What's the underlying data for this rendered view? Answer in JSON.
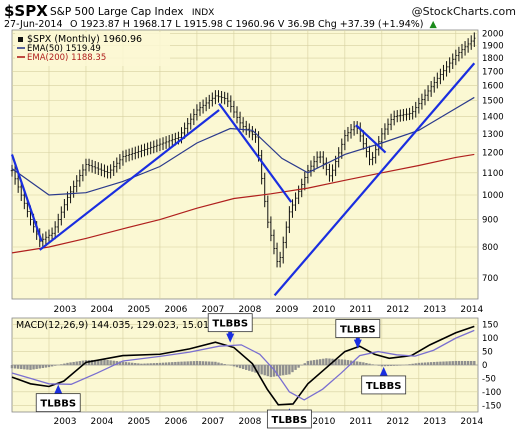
{
  "header": {
    "symbol": "$SPX",
    "name": "S&P 500 Large Cap Index",
    "exchange": "INDX",
    "watermark": "@StockCharts.com",
    "date": "27-Jun-2014",
    "ohlc": "O 1923.87  H 1968.17  L 1915.98  C 1960.96  V 36.9B  Chg +37.39 (+1.94%)",
    "arrow": "▲"
  },
  "legend": {
    "price": "$SPX (Monthly) 1960.96",
    "ema50": "EMA(50) 1519.49",
    "ema200": "EMA(200) 1188.35"
  },
  "colors": {
    "panel_bg": "#fbf8d3",
    "grid": "#d6d0a0",
    "price": "#111111",
    "ema50": "#2b3a8c",
    "ema200": "#b0201e",
    "trendline": "#1a2ee0",
    "macd": "#000000",
    "signal": "#7a6fd0",
    "histogram": "#8f8f8f",
    "callout_bg": "#ffffff"
  },
  "macd_label": "MACD(12,26,9) 144.035, 129.023, 15.012",
  "annotations": [
    {
      "text": "TLBBS",
      "anchor_date": 2003.25,
      "anchor_value": -62,
      "pointer": "up"
    },
    {
      "text": "TLBBS",
      "anchor_date": 2007.9,
      "anchor_value": 72,
      "pointer": "down"
    },
    {
      "text": "TLBBS",
      "anchor_date": 2009.5,
      "anchor_value": -150,
      "pointer": "up"
    },
    {
      "text": "TLBBS",
      "anchor_date": 2011.35,
      "anchor_value": 50,
      "pointer": "down"
    },
    {
      "text": "TLBBS",
      "anchor_date": 2012.05,
      "anchor_value": 4,
      "pointer": "up"
    }
  ],
  "chart_data": [
    {
      "type": "line",
      "title": "$SPX S&P 500 Large Cap Index INDX",
      "scale": "log",
      "xlim": [
        2002.0,
        2014.6
      ],
      "ylim": [
        640,
        2030
      ],
      "x_ticks": [
        "2003",
        "2004",
        "2005",
        "2006",
        "2007",
        "2008",
        "2009",
        "2010",
        "2011",
        "2012",
        "2013",
        "2014"
      ],
      "y_ticks": [
        700,
        800,
        900,
        1000,
        1100,
        1200,
        1300,
        1400,
        1500,
        1600,
        1700,
        1800,
        1900,
        2000
      ],
      "grid": true,
      "legend": "top-left",
      "series": [
        {
          "name": "$SPX (Monthly) 1960.96",
          "style": "bars",
          "x": [
            2002.0,
            2002.5,
            2002.75,
            2003.1,
            2003.5,
            2004.0,
            2004.6,
            2005.0,
            2005.8,
            2006.5,
            2007.0,
            2007.5,
            2007.8,
            2008.2,
            2008.6,
            2008.9,
            2009.2,
            2009.5,
            2010.0,
            2010.3,
            2010.6,
            2011.0,
            2011.3,
            2011.7,
            2012.0,
            2012.3,
            2012.8,
            2013.0,
            2013.5,
            2014.0,
            2014.5
          ],
          "values": [
            1110,
            900,
            820,
            850,
            990,
            1140,
            1100,
            1180,
            1230,
            1280,
            1440,
            1530,
            1510,
            1350,
            1280,
            900,
            735,
            930,
            1110,
            1190,
            1080,
            1290,
            1350,
            1150,
            1300,
            1400,
            1420,
            1480,
            1650,
            1820,
            1960
          ]
        },
        {
          "name": "EMA(50) 1519.49",
          "x": [
            2002.0,
            2003.0,
            2004.0,
            2005.0,
            2006.0,
            2007.0,
            2007.9,
            2008.5,
            2009.3,
            2010.0,
            2011.0,
            2012.0,
            2013.0,
            2014.0,
            2014.5
          ],
          "values": [
            1120,
            1000,
            1010,
            1060,
            1130,
            1250,
            1330,
            1320,
            1170,
            1100,
            1190,
            1250,
            1320,
            1450,
            1520
          ]
        },
        {
          "name": "EMA(200) 1188.35",
          "x": [
            2002.0,
            2003.0,
            2004.0,
            2005.0,
            2006.0,
            2007.0,
            2008.0,
            2009.0,
            2010.0,
            2011.0,
            2012.0,
            2013.0,
            2014.0,
            2014.5
          ],
          "values": [
            780,
            800,
            830,
            865,
            900,
            945,
            985,
            1005,
            1030,
            1065,
            1100,
            1135,
            1175,
            1190
          ]
        },
        {
          "name": "",
          "style": "trendline",
          "x": [
            2002.0,
            2002.8
          ],
          "values": [
            1190,
            820
          ]
        },
        {
          "name": "",
          "style": "trendline",
          "x": [
            2002.75,
            2007.6
          ],
          "values": [
            790,
            1440
          ]
        },
        {
          "name": "",
          "style": "trendline",
          "x": [
            2007.6,
            2009.55
          ],
          "values": [
            1480,
            970
          ]
        },
        {
          "name": "",
          "style": "trendline",
          "x": [
            2009.1,
            2014.5
          ],
          "values": [
            650,
            1760
          ]
        },
        {
          "name": "",
          "style": "trendline",
          "x": [
            2011.3,
            2012.1
          ],
          "values": [
            1350,
            1200
          ]
        }
      ]
    },
    {
      "type": "line",
      "title": "MACD(12,26,9) 144.035, 129.023, 15.012",
      "xlim": [
        2002.0,
        2014.6
      ],
      "ylim": [
        -175,
        175
      ],
      "x_ticks": [
        "2003",
        "2004",
        "2005",
        "2006",
        "2007",
        "2008",
        "2009",
        "2010",
        "2011",
        "2012",
        "2013",
        "2014"
      ],
      "y_ticks": [
        -150,
        -100,
        -50,
        0,
        50,
        100,
        150
      ],
      "grid": true,
      "series": [
        {
          "name": "MACD",
          "x": [
            2002.0,
            2002.5,
            2003.0,
            2003.4,
            2004.0,
            2005.0,
            2006.0,
            2006.8,
            2007.5,
            2008.0,
            2008.5,
            2008.9,
            2009.2,
            2009.6,
            2010.0,
            2010.5,
            2011.0,
            2011.4,
            2011.8,
            2012.2,
            2012.8,
            2013.3,
            2014.0,
            2014.5
          ],
          "values": [
            -45,
            -70,
            -80,
            -60,
            10,
            35,
            40,
            60,
            85,
            65,
            5,
            -90,
            -148,
            -145,
            -70,
            -10,
            50,
            70,
            40,
            25,
            35,
            75,
            120,
            144
          ]
        },
        {
          "name": "Signal",
          "x": [
            2002.0,
            2002.5,
            2003.0,
            2003.6,
            2004.3,
            2005.0,
            2006.0,
            2006.8,
            2007.6,
            2008.2,
            2008.7,
            2009.1,
            2009.5,
            2009.9,
            2010.4,
            2010.9,
            2011.4,
            2011.9,
            2012.4,
            2012.9,
            2013.4,
            2014.0,
            2014.5
          ],
          "values": [
            -30,
            -50,
            -70,
            -72,
            -30,
            15,
            32,
            48,
            70,
            75,
            40,
            -20,
            -100,
            -130,
            -90,
            -30,
            35,
            50,
            38,
            33,
            55,
            100,
            129
          ]
        },
        {
          "name": "Histogram",
          "style": "bars",
          "x": [
            2002.0,
            2002.5,
            2003.0,
            2003.5,
            2004.0,
            2004.5,
            2005.0,
            2005.5,
            2006.0,
            2006.5,
            2007.0,
            2007.5,
            2008.0,
            2008.5,
            2009.0,
            2009.5,
            2010.0,
            2010.5,
            2011.0,
            2011.5,
            2012.0,
            2012.5,
            2013.0,
            2013.5,
            2014.0,
            2014.5
          ],
          "values": [
            -12,
            -18,
            -8,
            8,
            18,
            20,
            12,
            5,
            8,
            12,
            15,
            12,
            -5,
            -25,
            -45,
            -35,
            15,
            25,
            20,
            10,
            -5,
            -2,
            8,
            12,
            15,
            15
          ]
        }
      ]
    }
  ]
}
